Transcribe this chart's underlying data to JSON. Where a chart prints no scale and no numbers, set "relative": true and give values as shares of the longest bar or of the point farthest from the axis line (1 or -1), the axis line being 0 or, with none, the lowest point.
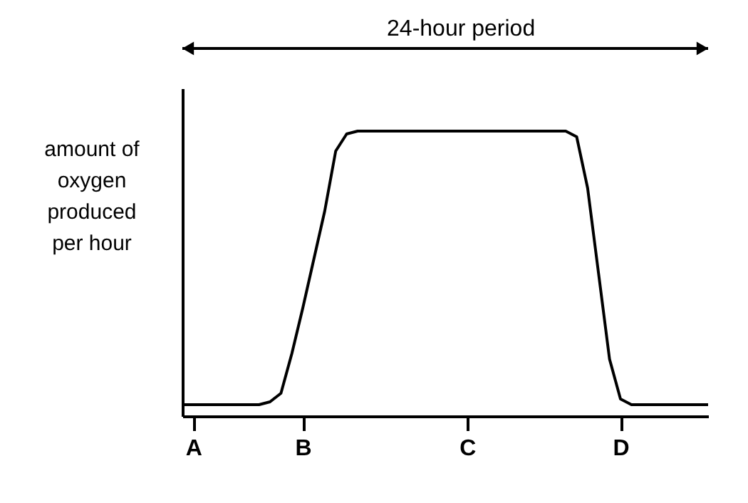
{
  "chart_data": {
    "type": "line",
    "relative": true,
    "ylabel": "amount of oxygen produced per hour",
    "annotations": [
      "24-hour period"
    ],
    "categories": [
      null,
      "A",
      null,
      null,
      null,
      null,
      null,
      null,
      null,
      null,
      null,
      "B",
      null,
      null,
      null,
      null,
      null,
      null,
      null,
      null,
      null,
      null,
      null,
      null,
      null,
      null,
      "C",
      null,
      null,
      null,
      null,
      null,
      null,
      null,
      null,
      null,
      null,
      null,
      null,
      null,
      "D",
      null,
      null,
      null,
      null,
      null,
      null,
      null,
      null
    ],
    "series": [
      {
        "color": "#000000",
        "values": [
          0.04,
          0.04,
          0.04,
          0.04,
          0.04,
          0.04,
          0.04,
          0.04,
          0.05,
          0.08,
          0.22,
          0.38,
          0.55,
          0.72,
          0.93,
          0.99,
          1,
          1,
          1,
          1,
          1,
          1,
          1,
          1,
          1,
          1,
          1,
          1,
          1,
          1,
          1,
          1,
          1,
          1,
          1,
          1,
          0.98,
          0.8,
          0.5,
          0.2,
          0.06,
          0.04,
          0.04,
          0.04,
          0.04,
          0.04,
          0.04,
          0.04,
          0.04
        ]
      }
    ],
    "grid": false,
    "marker": "none",
    "line_style": "solid"
  }
}
